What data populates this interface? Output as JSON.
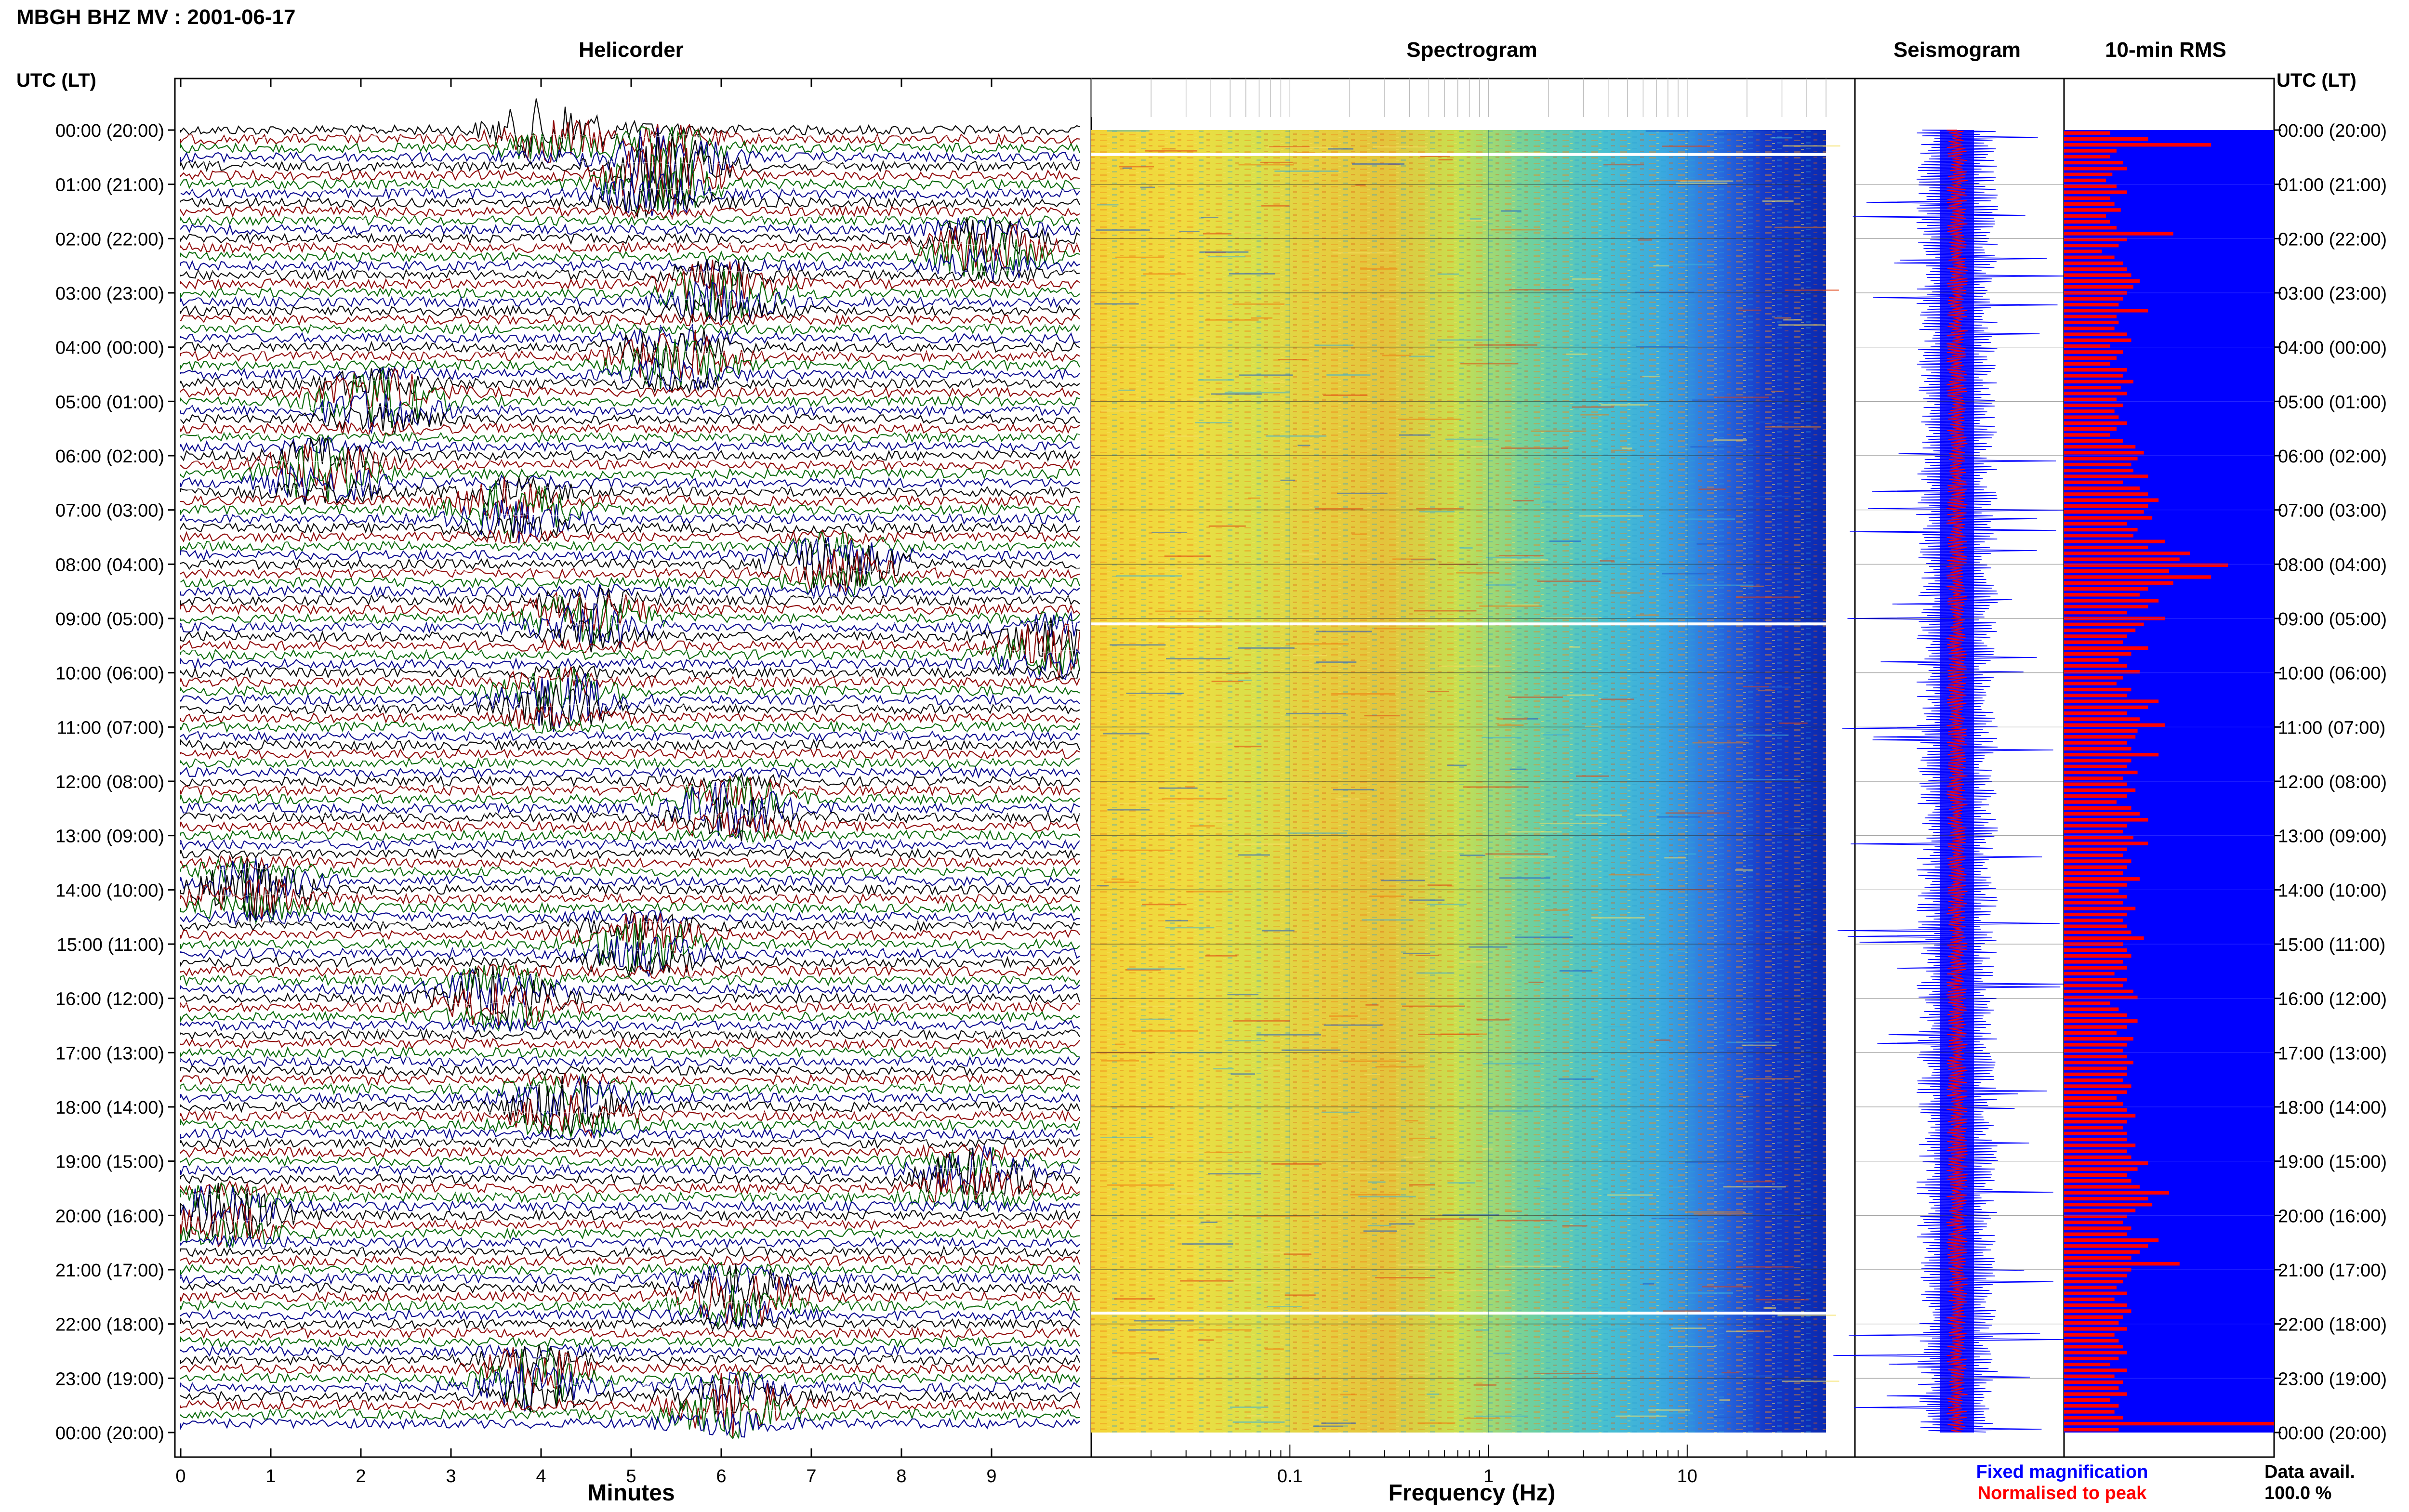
{
  "title": "MBGH BHZ MV : 2001-06-17",
  "chart_data": {
    "type": "composite",
    "panels": {
      "helicorder": {
        "title": "Helicorder",
        "xlabel": "Minutes",
        "x_ticks": [
          "0",
          "1",
          "2",
          "3",
          "4",
          "5",
          "6",
          "7",
          "8",
          "9"
        ],
        "xlim": [
          0,
          10
        ],
        "trace_colors": [
          "#000000",
          "#8b0000",
          "#006400",
          "#00008b"
        ],
        "events": [
          {
            "hour": 0.0,
            "minute": 4.1
          },
          {
            "hour": 0.5,
            "minute": 5.4
          },
          {
            "hour": 1.0,
            "minute": 5.3
          },
          {
            "hour": 2.2,
            "minute": 8.9
          },
          {
            "hour": 3.0,
            "minute": 6.0
          },
          {
            "hour": 4.2,
            "minute": 5.5
          },
          {
            "hour": 5.0,
            "minute": 2.2
          },
          {
            "hour": 6.3,
            "minute": 1.6
          },
          {
            "hour": 7.0,
            "minute": 3.7
          },
          {
            "hour": 8.0,
            "minute": 7.3
          },
          {
            "hour": 9.0,
            "minute": 4.5
          },
          {
            "hour": 9.5,
            "minute": 9.7
          },
          {
            "hour": 10.5,
            "minute": 4.2
          },
          {
            "hour": 12.5,
            "minute": 6.1
          },
          {
            "hour": 14.0,
            "minute": 0.8
          },
          {
            "hour": 15.0,
            "minute": 5.1
          },
          {
            "hour": 16.0,
            "minute": 3.5
          },
          {
            "hour": 18.0,
            "minute": 4.3
          },
          {
            "hour": 19.3,
            "minute": 8.8
          },
          {
            "hour": 20.0,
            "minute": 0.5
          },
          {
            "hour": 21.5,
            "minute": 6.2
          },
          {
            "hour": 23.0,
            "minute": 3.9
          },
          {
            "hour": 23.5,
            "minute": 6.1
          }
        ]
      },
      "spectrogram": {
        "title": "Spectrogram",
        "xlabel": "Frequency (Hz)",
        "x_scale": "log",
        "x_ticks": [
          "0.1",
          "1",
          "10"
        ],
        "xlim": [
          0.01,
          50
        ]
      },
      "seismogram": {
        "title": "Seismogram",
        "legend": [
          {
            "label": "Fixed magnification",
            "color": "#0000ff"
          },
          {
            "label": "Normalised to peak",
            "color": "#ff0000"
          }
        ]
      },
      "rms": {
        "title": "10-min RMS",
        "series": [
          {
            "name": "Fixed magnification",
            "color": "#0000ff"
          },
          {
            "name": "Normalised to peak",
            "color": "#ff0000"
          }
        ],
        "values": [
          0.22,
          0.4,
          0.7,
          0.25,
          0.22,
          0.28,
          0.3,
          0.23,
          0.2,
          0.25,
          0.3,
          0.22,
          0.24,
          0.27,
          0.2,
          0.22,
          0.25,
          0.52,
          0.3,
          0.26,
          0.18,
          0.24,
          0.28,
          0.3,
          0.32,
          0.36,
          0.33,
          0.3,
          0.28,
          0.26,
          0.4,
          0.25,
          0.26,
          0.24,
          0.3,
          0.32,
          0.22,
          0.28,
          0.25,
          0.22,
          0.3,
          0.28,
          0.33,
          0.27,
          0.3,
          0.25,
          0.28,
          0.24,
          0.26,
          0.3,
          0.25,
          0.22,
          0.28,
          0.34,
          0.38,
          0.35,
          0.32,
          0.33,
          0.4,
          0.28,
          0.36,
          0.4,
          0.45,
          0.4,
          0.38,
          0.42,
          0.3,
          0.35,
          0.33,
          0.48,
          0.4,
          0.6,
          0.55,
          0.78,
          0.5,
          0.7,
          0.52,
          0.4,
          0.36,
          0.45,
          0.4,
          0.3,
          0.48,
          0.38,
          0.34,
          0.3,
          0.28,
          0.4,
          0.32,
          0.26,
          0.3,
          0.36,
          0.28,
          0.25,
          0.32,
          0.3,
          0.45,
          0.4,
          0.3,
          0.36,
          0.48,
          0.35,
          0.34,
          0.3,
          0.32,
          0.45,
          0.32,
          0.3,
          0.35,
          0.28,
          0.3,
          0.34,
          0.3,
          0.25,
          0.32,
          0.36,
          0.4,
          0.3,
          0.28,
          0.33,
          0.4,
          0.3,
          0.28,
          0.32,
          0.3,
          0.28,
          0.36,
          0.3,
          0.26,
          0.3,
          0.28,
          0.34,
          0.3,
          0.28,
          0.3,
          0.32,
          0.38,
          0.28,
          0.3,
          0.32,
          0.28,
          0.3,
          0.24,
          0.3,
          0.28,
          0.33,
          0.35,
          0.22,
          0.26,
          0.3,
          0.35,
          0.3,
          0.25,
          0.33,
          0.3,
          0.28,
          0.3,
          0.33,
          0.3,
          0.3,
          0.28,
          0.32,
          0.3,
          0.25,
          0.28,
          0.3,
          0.34,
          0.3,
          0.28,
          0.3,
          0.3,
          0.34,
          0.3,
          0.32,
          0.4,
          0.35,
          0.3,
          0.32,
          0.36,
          0.5,
          0.4,
          0.42,
          0.34,
          0.3,
          0.28,
          0.32,
          0.3,
          0.45,
          0.4,
          0.36,
          0.32,
          0.55,
          0.32,
          0.3,
          0.28,
          0.25,
          0.3,
          0.24,
          0.3,
          0.32,
          0.28,
          0.26,
          0.3,
          0.24,
          0.26,
          0.28,
          0.3,
          0.26,
          0.22,
          0.3,
          0.24,
          0.28,
          0.26,
          0.3,
          0.22,
          0.26,
          0.24,
          0.28,
          1.0,
          0.26
        ],
        "xlim": [
          0,
          1
        ]
      }
    },
    "y_axis": {
      "label": "UTC (LT)",
      "ticks": [
        "00:00 (20:00)",
        "01:00 (21:00)",
        "02:00 (22:00)",
        "03:00 (23:00)",
        "04:00 (00:00)",
        "05:00 (01:00)",
        "06:00 (02:00)",
        "07:00 (03:00)",
        "08:00 (04:00)",
        "09:00 (05:00)",
        "10:00 (06:00)",
        "11:00 (07:00)",
        "12:00 (08:00)",
        "13:00 (09:00)",
        "14:00 (10:00)",
        "15:00 (11:00)",
        "16:00 (12:00)",
        "17:00 (13:00)",
        "18:00 (14:00)",
        "19:00 (15:00)",
        "20:00 (16:00)",
        "21:00 (17:00)",
        "22:00 (18:00)",
        "23:00 (19:00)",
        "00:00 (20:00)"
      ],
      "range_hours": [
        0,
        24
      ]
    },
    "spectrogram_gaps_hours": [
      0.45,
      9.1,
      21.8
    ],
    "data_availability": {
      "label": "Data avail.",
      "value": "100.0 %"
    }
  }
}
